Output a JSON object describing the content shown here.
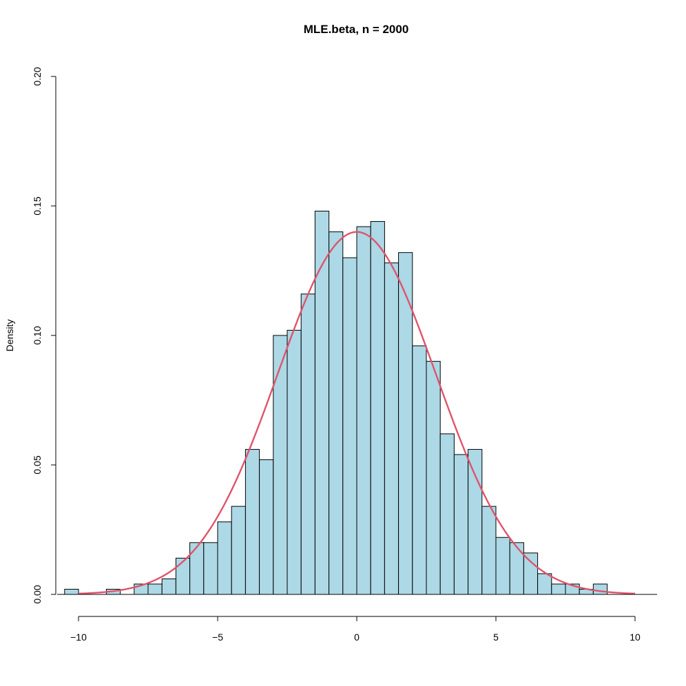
{
  "chart_data": {
    "type": "bar",
    "subtype": "histogram",
    "title": "MLE.beta, n = 2000",
    "xlabel": "",
    "ylabel": "Density",
    "xlim": [
      -10.75,
      10.75
    ],
    "ylim": [
      0,
      0.2
    ],
    "x_ticks": [
      -10,
      -5,
      0,
      5,
      10
    ],
    "x_tick_labels": [
      "−10",
      "−5",
      "0",
      "5",
      "10"
    ],
    "y_ticks": [
      0,
      0.05,
      0.1,
      0.15,
      0.2
    ],
    "y_tick_labels": [
      "0.00",
      "0.05",
      "0.10",
      "0.15",
      "0.20"
    ],
    "grid": false,
    "bin_width": 0.5,
    "bins": [
      {
        "x0": -10.5,
        "x1": -10.0,
        "density": 0.002
      },
      {
        "x0": -10.0,
        "x1": -9.5,
        "density": 0.0
      },
      {
        "x0": -9.5,
        "x1": -9.0,
        "density": 0.0
      },
      {
        "x0": -9.0,
        "x1": -8.5,
        "density": 0.002
      },
      {
        "x0": -8.5,
        "x1": -8.0,
        "density": 0.0
      },
      {
        "x0": -8.0,
        "x1": -7.5,
        "density": 0.004
      },
      {
        "x0": -7.5,
        "x1": -7.0,
        "density": 0.004
      },
      {
        "x0": -7.0,
        "x1": -6.5,
        "density": 0.006
      },
      {
        "x0": -6.5,
        "x1": -6.0,
        "density": 0.014
      },
      {
        "x0": -6.0,
        "x1": -5.5,
        "density": 0.02
      },
      {
        "x0": -5.5,
        "x1": -5.0,
        "density": 0.02
      },
      {
        "x0": -5.0,
        "x1": -4.5,
        "density": 0.028
      },
      {
        "x0": -4.5,
        "x1": -4.0,
        "density": 0.034
      },
      {
        "x0": -4.0,
        "x1": -3.5,
        "density": 0.056
      },
      {
        "x0": -3.5,
        "x1": -3.0,
        "density": 0.052
      },
      {
        "x0": -3.0,
        "x1": -2.5,
        "density": 0.1
      },
      {
        "x0": -2.5,
        "x1": -2.0,
        "density": 0.102
      },
      {
        "x0": -2.0,
        "x1": -1.5,
        "density": 0.116
      },
      {
        "x0": -1.5,
        "x1": -1.0,
        "density": 0.148
      },
      {
        "x0": -1.0,
        "x1": -0.5,
        "density": 0.14
      },
      {
        "x0": -0.5,
        "x1": 0.0,
        "density": 0.13
      },
      {
        "x0": 0.0,
        "x1": 0.5,
        "density": 0.142
      },
      {
        "x0": 0.5,
        "x1": 1.0,
        "density": 0.144
      },
      {
        "x0": 1.0,
        "x1": 1.5,
        "density": 0.128
      },
      {
        "x0": 1.5,
        "x1": 2.0,
        "density": 0.132
      },
      {
        "x0": 2.0,
        "x1": 2.5,
        "density": 0.096
      },
      {
        "x0": 2.5,
        "x1": 3.0,
        "density": 0.09
      },
      {
        "x0": 3.0,
        "x1": 3.5,
        "density": 0.062
      },
      {
        "x0": 3.5,
        "x1": 4.0,
        "density": 0.054
      },
      {
        "x0": 4.0,
        "x1": 4.5,
        "density": 0.056
      },
      {
        "x0": 4.5,
        "x1": 5.0,
        "density": 0.034
      },
      {
        "x0": 5.0,
        "x1": 5.5,
        "density": 0.022
      },
      {
        "x0": 5.5,
        "x1": 6.0,
        "density": 0.02
      },
      {
        "x0": 6.0,
        "x1": 6.5,
        "density": 0.016
      },
      {
        "x0": 6.5,
        "x1": 7.0,
        "density": 0.008
      },
      {
        "x0": 7.0,
        "x1": 7.5,
        "density": 0.004
      },
      {
        "x0": 7.5,
        "x1": 8.0,
        "density": 0.004
      },
      {
        "x0": 8.0,
        "x1": 8.5,
        "density": 0.002
      },
      {
        "x0": 8.5,
        "x1": 9.0,
        "density": 0.004
      }
    ],
    "density_curve": {
      "type": "normal",
      "mean": 0,
      "sd": 2.85,
      "x_range": [
        -10,
        10
      ],
      "color": "#DF536B"
    },
    "colors": {
      "bar_fill": "#ADD8E6",
      "bar_stroke": "#000000",
      "curve": "#DF536B"
    }
  }
}
